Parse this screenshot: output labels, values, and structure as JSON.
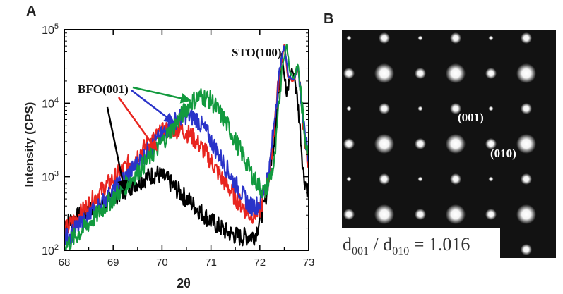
{
  "panel_a_label": "A",
  "panel_b_label": "B",
  "chart_data": {
    "type": "line",
    "xlabel": "2θ",
    "ylabel": "Intensity (CPS)",
    "xlim": [
      68,
      73
    ],
    "ylim": [
      100,
      100000
    ],
    "y_scale": "log",
    "x_ticks": [
      "68",
      "69",
      "70",
      "71",
      "72",
      "73"
    ],
    "y_ticks": [
      {
        "base": "10",
        "exp": "2",
        "value": 100
      },
      {
        "base": "10",
        "exp": "3",
        "value": 1000
      },
      {
        "base": "10",
        "exp": "4",
        "value": 10000
      },
      {
        "base": "10",
        "exp": "5",
        "value": 100000
      }
    ],
    "annotations": [
      {
        "text": "BFO(001)",
        "arrows_to": "film peaks"
      },
      {
        "text": "STO(100)",
        "arrows_to": "substrate peaks"
      }
    ],
    "series": [
      {
        "color": "#000000",
        "x": [
          68.0,
          68.3,
          68.6,
          68.9,
          69.2,
          69.5,
          69.75,
          69.9,
          70.1,
          70.4,
          70.7,
          71.0,
          71.3,
          71.6,
          71.9,
          72.1,
          72.3,
          72.45,
          72.55,
          72.65,
          72.72,
          72.8,
          72.9,
          73.0
        ],
        "y": [
          230,
          290,
          370,
          480,
          640,
          850,
          1020,
          1100,
          900,
          580,
          380,
          250,
          180,
          150,
          160,
          420,
          3500,
          50000,
          12000,
          30000,
          21000,
          7000,
          1000,
          600
        ]
      },
      {
        "color": "#e8251f",
        "x": [
          68.0,
          68.3,
          68.6,
          68.9,
          69.2,
          69.5,
          69.8,
          70.0,
          70.2,
          70.4,
          70.6,
          70.9,
          71.2,
          71.5,
          71.8,
          72.0,
          72.2,
          72.4,
          72.5,
          72.58,
          72.7,
          72.78,
          72.9,
          73.0
        ],
        "y": [
          180,
          300,
          500,
          800,
          1250,
          2000,
          3100,
          4000,
          4500,
          4400,
          3600,
          2100,
          1000,
          520,
          300,
          340,
          1100,
          25000,
          60000,
          22000,
          20000,
          32000,
          4000,
          1500
        ]
      },
      {
        "color": "#2a33c9",
        "x": [
          68.0,
          68.3,
          68.6,
          68.9,
          69.2,
          69.5,
          69.8,
          70.1,
          70.3,
          70.5,
          70.7,
          70.9,
          71.2,
          71.5,
          71.8,
          72.0,
          72.2,
          72.4,
          72.5,
          72.58,
          72.7,
          72.78,
          72.9,
          73.0
        ],
        "y": [
          140,
          210,
          340,
          540,
          900,
          1500,
          2600,
          4400,
          6000,
          6900,
          6200,
          4100,
          1800,
          800,
          400,
          420,
          1300,
          28000,
          62000,
          24000,
          21000,
          33000,
          4500,
          1600
        ]
      },
      {
        "color": "#129a3e",
        "x": [
          68.0,
          68.3,
          68.6,
          68.9,
          69.2,
          69.5,
          69.8,
          70.1,
          70.4,
          70.6,
          70.8,
          71.0,
          71.3,
          71.6,
          71.9,
          72.1,
          72.3,
          72.45,
          72.55,
          72.62,
          72.7,
          72.78,
          72.9,
          73.0
        ],
        "y": [
          110,
          170,
          270,
          440,
          700,
          1150,
          2000,
          3600,
          6800,
          10500,
          12500,
          11000,
          5600,
          2300,
          900,
          600,
          1500,
          30000,
          62000,
          26000,
          22000,
          34000,
          5000,
          1700
        ]
      }
    ]
  },
  "diffraction": {
    "spot_labels": [
      "(001)",
      "(010)"
    ],
    "ratio": {
      "d1": "d",
      "sub1": "001",
      "sep": " / ",
      "d2": "d",
      "sub2": "010",
      "value": " = 1.016"
    }
  }
}
